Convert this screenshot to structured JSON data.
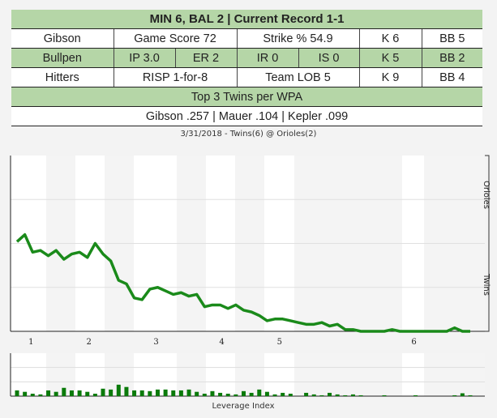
{
  "summary": {
    "header": "MIN 6, BAL 2 | Current Record 1-1",
    "starter": {
      "label": "Gibson",
      "game_score": "Game Score 72",
      "strike_pct": "Strike % 54.9",
      "k": "K 6",
      "bb": "BB 5"
    },
    "bullpen": {
      "label": "Bullpen",
      "ip": "IP 3.0",
      "er": "ER 2",
      "ir": "IR 0",
      "is": "IS 0",
      "k": "K 5",
      "bb": "BB 2"
    },
    "hitters": {
      "label": "Hitters",
      "risp": "RISP 1-for-8",
      "lob": "Team LOB 5",
      "k": "K 9",
      "bb": "BB 4"
    },
    "wpa_header": "Top 3 Twins per WPA",
    "wpa_leaders": "Gibson .257 | Mauer .104 | Kepler .099"
  },
  "colors": {
    "accent": "#b5d6a7",
    "line": "#1a8a1a",
    "bar": "#0a7a0a"
  },
  "chart_data": [
    {
      "type": "line",
      "title": "3/31/2018 - Twins(6) @ Orioles(2)",
      "ylabel_top": "Orioles",
      "ylabel_bottom": "Twins",
      "ylim": [
        0,
        1
      ],
      "x_ticks": [
        {
          "label": "1",
          "at": 1.8
        },
        {
          "label": "2",
          "at": 9.2
        },
        {
          "label": "3",
          "at": 17.8
        },
        {
          "label": "4",
          "at": 26.2
        },
        {
          "label": "5",
          "at": 33.6
        },
        {
          "label": "6",
          "at": 50.8
        }
      ],
      "values": [
        0.51,
        0.55,
        0.45,
        0.46,
        0.43,
        0.46,
        0.41,
        0.44,
        0.45,
        0.42,
        0.5,
        0.44,
        0.4,
        0.29,
        0.27,
        0.19,
        0.18,
        0.24,
        0.25,
        0.23,
        0.21,
        0.22,
        0.2,
        0.21,
        0.14,
        0.15,
        0.15,
        0.13,
        0.15,
        0.12,
        0.11,
        0.09,
        0.06,
        0.07,
        0.07,
        0.06,
        0.05,
        0.04,
        0.04,
        0.05,
        0.03,
        0.04,
        0.01,
        0.01,
        0,
        0,
        0,
        0,
        0.01,
        0,
        0,
        0,
        0,
        0,
        0,
        0,
        0.02,
        0,
        0
      ]
    },
    {
      "type": "bar",
      "xlabel": "Leverage Index",
      "ylim": [
        0,
        3
      ],
      "values": [
        0.4,
        0.3,
        0.17,
        0.12,
        0.4,
        0.3,
        0.58,
        0.4,
        0.4,
        0.3,
        0.17,
        0.52,
        0.46,
        0.8,
        0.64,
        0.4,
        0.4,
        0.35,
        0.46,
        0.46,
        0.4,
        0.4,
        0.46,
        0.3,
        0.17,
        0.35,
        0.23,
        0.17,
        0.12,
        0.35,
        0.23,
        0.46,
        0.3,
        0.12,
        0.23,
        0.17,
        0,
        0.23,
        0.12,
        0.06,
        0.23,
        0.12,
        0.06,
        0.12,
        0.06,
        0,
        0,
        0.06,
        0,
        0,
        0,
        0.06,
        0,
        0,
        0,
        0,
        0.06,
        0.2,
        0.06
      ]
    }
  ]
}
